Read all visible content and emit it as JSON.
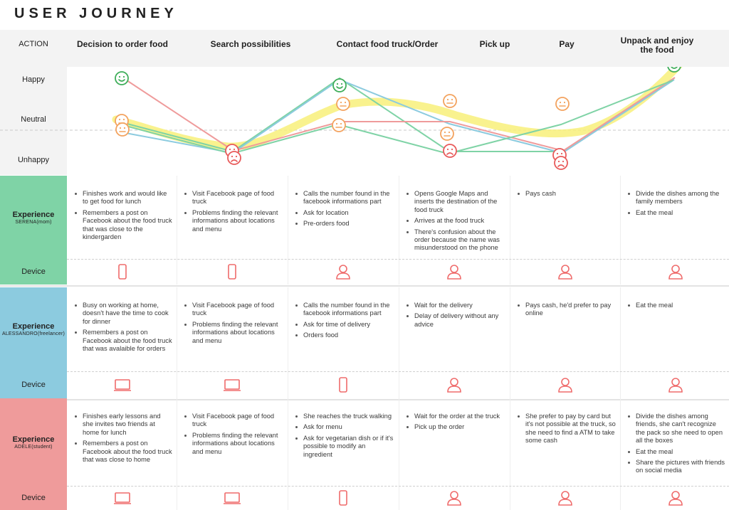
{
  "title": "USER JOURNEY",
  "row_labels": {
    "action": "ACTION",
    "happy": "Happy",
    "neutral": "Neutral",
    "unhappy": "Unhappy",
    "device": "Device"
  },
  "stages": [
    "Decision to order food",
    "Search possibilities",
    "Contact food truck/Order",
    "Pick up",
    "Pay",
    "Unpack and enjoy the food"
  ],
  "colors": {
    "serena": "#7fd3a6",
    "alessandro": "#8ccbdf",
    "adele": "#ef9b9b",
    "trend": "#f8f07a",
    "icon": "#ef6b6b",
    "happy": "#3fae5a",
    "neutral": "#f3a35f",
    "unhappy": "#e85a5a"
  },
  "emotion_lines": [
    {
      "persona": "serena",
      "color": "#7fd3a6",
      "levels": [
        "neutral",
        "unhappy",
        "happy",
        "unhappy",
        "unhappy",
        "happy"
      ]
    },
    {
      "persona": "alessandro",
      "color": "#8ccbdf",
      "levels": [
        "neutral",
        "unhappy",
        "happy",
        "neutral",
        "unhappy",
        "happy"
      ]
    },
    {
      "persona": "adele",
      "color": "#ef9b9b",
      "levels": [
        "happy",
        "unhappy",
        "neutral",
        "neutral",
        "unhappy",
        "happy"
      ]
    },
    {
      "persona": "mixed",
      "color": "#7fd3a6",
      "levels": [
        "neutral",
        "unhappy",
        "neutral",
        "unhappy",
        "neutral",
        "happy"
      ]
    }
  ],
  "personas": [
    {
      "id": "serena",
      "label": "Experience",
      "sub": "SERENA(mom)",
      "color": "#7fd3a6",
      "steps": [
        [
          "Finishes work and would like to get food for lunch",
          "Remembers a post on Facebook about the food truck that was close to the kindergarden"
        ],
        [
          "Visit Facebook page of food truck",
          "Problems finding the relevant informations about locations and menu"
        ],
        [
          "Calls the number found in the facebook informations part",
          "Ask for location",
          "Pre-orders food"
        ],
        [
          "Opens Google Maps and inserts the destination of the food truck",
          "Arrives at the food truck",
          "There's confusion about the order because the name was misunderstood on the phone"
        ],
        [
          "Pays cash"
        ],
        [
          "Divide the dishes among the family members",
          "Eat the meal"
        ]
      ],
      "devices": [
        "phone-icon",
        "phone-icon",
        "person-icon",
        "person-icon",
        "person-icon",
        "person-icon"
      ]
    },
    {
      "id": "alessandro",
      "label": "Experience",
      "sub": "ALESSANDRO(freelancer)",
      "color": "#8ccbdf",
      "steps": [
        [
          "Busy on working at home, doesn't have the time to cook for dinner",
          "Remembers a post on Facebook about the food truck that was avalaible for orders"
        ],
        [
          "Visit Facebook page of food truck",
          "Problems finding the relevant informations about locations and menu"
        ],
        [
          "Calls the number found in the facebook informations part",
          "Ask for time of delivery",
          "Orders food"
        ],
        [
          "Wait for the delivery",
          "Delay of delivery without any advice"
        ],
        [
          "Pays cash, he'd prefer to pay online"
        ],
        [
          "Eat the meal"
        ]
      ],
      "devices": [
        "laptop-icon",
        "laptop-icon",
        "phone-icon",
        "person-icon",
        "person-icon",
        "person-icon"
      ]
    },
    {
      "id": "adele",
      "label": "Experience",
      "sub": "ADELE(student)",
      "color": "#ef9b9b",
      "steps": [
        [
          "Finishes early lessons and she invites two friends at home for lunch",
          "Remembers a post on Facebook about the food truck that was close to home"
        ],
        [
          "Visit Facebook page of food truck",
          "Problems finding the relevant informations about locations and menu"
        ],
        [
          "She reaches the truck walking",
          "Ask for menu",
          "Ask for vegetarian dish or if it's possible to modify an ingredient"
        ],
        [
          "Wait for the order at the truck",
          "Pick up the order"
        ],
        [
          "She prefer to pay by card but it's not possible at the truck, so she need to find a ATM to take some cash"
        ],
        [
          "Divide the dishes among friends, she can't recognize the pack so she need to open all the boxes",
          "Eat the meal",
          "Share the pictures with friends on social media"
        ]
      ],
      "devices": [
        "laptop-icon",
        "laptop-icon",
        "phone-icon",
        "person-icon",
        "person-icon",
        "person-icon"
      ]
    }
  ]
}
